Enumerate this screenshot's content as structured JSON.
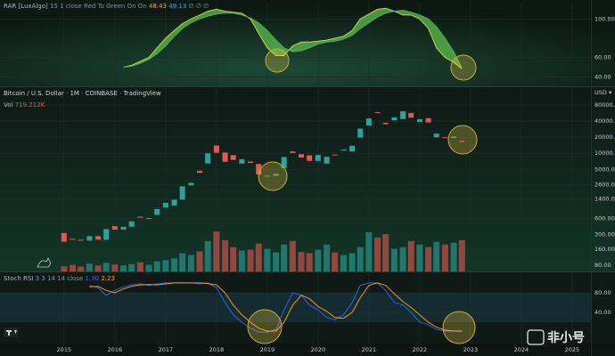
{
  "watermark": "非小号",
  "chart_data": [
    {
      "type": "band",
      "indicator": "RAR [LuxAlgo]",
      "params": "15 1 close Red To Green On On",
      "readouts": [
        "48.43",
        "49.13",
        "∅ ∅ ∅"
      ],
      "xlim": [
        2013.74,
        2025.37
      ],
      "ylim": [
        32,
        115
      ],
      "yticks": [
        {
          "value": 100,
          "label": "100.00"
        },
        {
          "value": 60,
          "label": "60.00"
        },
        {
          "value": 40,
          "label": "40.00"
        }
      ],
      "x": [
        2015,
        2015.17,
        2015.33,
        2015.5,
        2015.67,
        2015.83,
        2016,
        2016.17,
        2016.33,
        2016.5,
        2016.67,
        2016.83,
        2017,
        2017.17,
        2017.33,
        2017.5,
        2017.67,
        2017.83,
        2018,
        2018.17,
        2018.33,
        2018.5,
        2018.67,
        2018.83,
        2019,
        2019.17,
        2019.33,
        2019.5,
        2019.67,
        2019.83,
        2020,
        2020.17,
        2020.33,
        2020.5,
        2020.67,
        2020.83,
        2021,
        2021.17,
        2021.33,
        2021.5,
        2021.67,
        2021.83,
        2022,
        2022.17,
        2022.33,
        2022.5,
        2022.67,
        2022.83
      ],
      "series": [
        {
          "color": "#c9d04a",
          "values": [
            null,
            null,
            null,
            null,
            null,
            null,
            null,
            50,
            52,
            56,
            60,
            70,
            80,
            88,
            95,
            100,
            104,
            108,
            110,
            108,
            107,
            106,
            100,
            85,
            70,
            62,
            62,
            72,
            76,
            76,
            77,
            78,
            80,
            82,
            88,
            100,
            105,
            110,
            111,
            108,
            104,
            104,
            100,
            90,
            70,
            60,
            55,
            48.43
          ]
        },
        {
          "color": "#4caf50",
          "values": [
            null,
            null,
            null,
            null,
            null,
            null,
            null,
            50,
            51,
            54,
            58,
            64,
            72,
            82,
            90,
            96,
            100,
            103,
            105,
            106,
            106,
            104,
            101,
            96,
            88,
            78,
            70,
            66,
            67,
            70,
            74,
            76,
            77,
            79,
            83,
            90,
            96,
            102,
            106,
            108,
            109,
            107,
            104,
            100,
            92,
            80,
            66,
            49.13
          ]
        }
      ],
      "fill_color": "#5cbf4a"
    },
    {
      "type": "candlestick",
      "title": "Bitcoin / U.S. Dollar · 1M · COINBASE · TradingView",
      "currency": "USD ▾",
      "volume_label": "Vol",
      "volume_readout": "719.212K",
      "log_scale": true,
      "xlim": [
        2013.74,
        2025.37
      ],
      "ylim": [
        61,
        160000
      ],
      "yticks": [
        {
          "value": 80000,
          "label": "80000.00"
        },
        {
          "value": 40000,
          "label": "40000.00"
        },
        {
          "value": 20000,
          "label": "20000.00"
        },
        {
          "value": 10000,
          "label": "10000.00"
        },
        {
          "value": 5000,
          "label": "5000.00"
        },
        {
          "value": 2600,
          "label": "2600.00"
        },
        {
          "value": 1400,
          "label": "1400.00"
        },
        {
          "value": 600,
          "label": "600.00"
        },
        {
          "value": 300,
          "label": "300.00"
        },
        {
          "value": 160,
          "label": "160.00"
        },
        {
          "value": 80,
          "label": "80.00"
        }
      ],
      "up_color": "#26a69a",
      "down_color": "#ef5350",
      "x": [
        2015,
        2015.17,
        2015.33,
        2015.5,
        2015.67,
        2015.83,
        2016,
        2016.17,
        2016.33,
        2016.5,
        2016.67,
        2016.83,
        2017,
        2017.17,
        2017.33,
        2017.5,
        2017.67,
        2017.83,
        2018,
        2018.17,
        2018.33,
        2018.5,
        2018.67,
        2018.83,
        2019,
        2019.17,
        2019.33,
        2019.5,
        2019.67,
        2019.83,
        2020,
        2020.17,
        2020.33,
        2020.5,
        2020.67,
        2020.83,
        2021,
        2021.17,
        2021.33,
        2021.5,
        2021.67,
        2021.83,
        2022,
        2022.17,
        2022.33,
        2022.5,
        2022.67,
        2022.83
      ],
      "open": [
        320,
        250,
        240,
        230,
        280,
        240,
        430,
        370,
        420,
        650,
        600,
        700,
        960,
        1050,
        1350,
        2500,
        4700,
        6400,
        14000,
        10300,
        9200,
        6400,
        7000,
        6300,
        3700,
        3800,
        5300,
        10800,
        9600,
        9150,
        7200,
        6400,
        9450,
        11300,
        10800,
        19700,
        33000,
        58800,
        37300,
        41500,
        43800,
        57000,
        38500,
        45500,
        19900,
        20000,
        19400,
        17000
      ],
      "close": [
        220,
        240,
        230,
        280,
        240,
        380,
        370,
        420,
        530,
        620,
        610,
        900,
        1180,
        1350,
        2400,
        2800,
        4300,
        10000,
        10200,
        6900,
        7500,
        7700,
        6600,
        4000,
        3800,
        4100,
        8500,
        10100,
        8300,
        7200,
        9300,
        8600,
        9130,
        11700,
        13800,
        29000,
        45000,
        57700,
        35000,
        47100,
        61300,
        46300,
        43200,
        37700,
        23300,
        19400,
        20500,
        16500
      ],
      "volume_ylim": [
        0,
        4200
      ],
      "volume": [
        120,
        150,
        110,
        180,
        140,
        200,
        160,
        140,
        170,
        210,
        150,
        230,
        260,
        300,
        420,
        380,
        460,
        700,
        920,
        720,
        560,
        480,
        500,
        640,
        520,
        440,
        620,
        700,
        450,
        420,
        500,
        620,
        440,
        380,
        420,
        560,
        900,
        780,
        860,
        520,
        560,
        700,
        620,
        560,
        680,
        620,
        660,
        719.212
      ]
    },
    {
      "type": "line",
      "indicator": "Stoch RSI",
      "params": "3 3 14 14 close",
      "readouts": [
        "1.30",
        "2.23"
      ],
      "xlim": [
        2013.74,
        2025.37
      ],
      "xticks": [
        2015,
        2016,
        2017,
        2018,
        2019,
        2020,
        2021,
        2022,
        2023,
        2024,
        2025
      ],
      "ylim": [
        -27,
        118
      ],
      "yticks": [
        {
          "value": 80,
          "label": "80.00"
        },
        {
          "value": 40,
          "label": "40.00"
        }
      ],
      "band": [
        20,
        80
      ],
      "band_color": "#1a3a45",
      "x": [
        2015,
        2015.17,
        2015.33,
        2015.5,
        2015.67,
        2015.83,
        2016,
        2016.17,
        2016.33,
        2016.5,
        2016.67,
        2016.83,
        2017,
        2017.17,
        2017.33,
        2017.5,
        2017.67,
        2017.83,
        2018,
        2018.17,
        2018.33,
        2018.5,
        2018.67,
        2018.83,
        2019,
        2019.17,
        2019.33,
        2019.5,
        2019.67,
        2019.83,
        2020,
        2020.17,
        2020.33,
        2020.5,
        2020.67,
        2020.83,
        2021,
        2021.17,
        2021.33,
        2021.5,
        2021.67,
        2021.83,
        2022,
        2022.17,
        2022.33,
        2022.5,
        2022.67,
        2022.83
      ],
      "series": [
        {
          "color": "#2962ff",
          "values": [
            null,
            null,
            null,
            95,
            90,
            75,
            85,
            92,
            96,
            98,
            95,
            98,
            100,
            100,
            100,
            100,
            98,
            100,
            90,
            60,
            35,
            20,
            8,
            0,
            0,
            5,
            45,
            80,
            75,
            55,
            45,
            30,
            25,
            35,
            60,
            95,
            100,
            100,
            85,
            60,
            55,
            40,
            20,
            15,
            5,
            2,
            2,
            1.3
          ]
        },
        {
          "color": "#ff9800",
          "values": [
            null,
            null,
            null,
            92,
            93,
            85,
            80,
            88,
            93,
            96,
            97,
            96,
            98,
            100,
            100,
            100,
            100,
            99,
            96,
            80,
            55,
            35,
            20,
            8,
            2,
            2,
            20,
            55,
            75,
            68,
            52,
            42,
            30,
            28,
            40,
            70,
            95,
            100,
            95,
            78,
            62,
            50,
            35,
            20,
            10,
            4,
            2,
            2.23
          ]
        }
      ]
    }
  ]
}
